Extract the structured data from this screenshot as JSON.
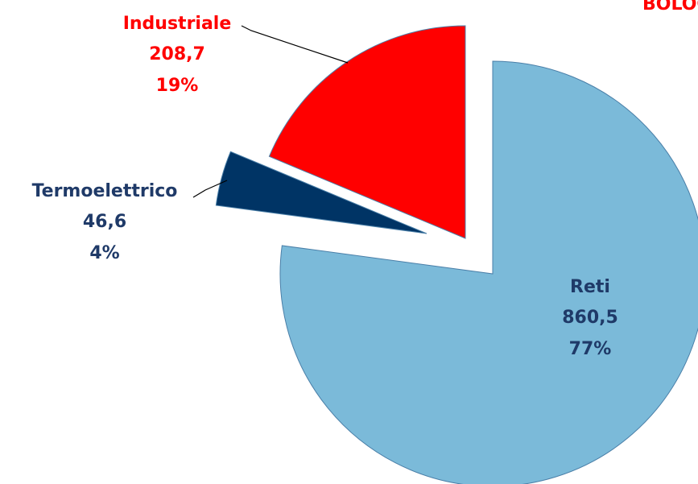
{
  "chart_data": {
    "type": "pie",
    "title": "BOLOGNA",
    "categories": [
      "Reti",
      "Termoelettrico",
      "Industriale"
    ],
    "values": [
      860.5,
      46.6,
      208.7
    ],
    "value_labels": [
      "860,5",
      "46,6",
      "208,7"
    ],
    "percentages": [
      77,
      4,
      19
    ],
    "percentage_labels": [
      "77%",
      "4%",
      "19%"
    ],
    "colors": [
      "#7bbad9",
      "#003465",
      "#ff0000"
    ],
    "label_colors": [
      "#1f3a68",
      "#1f3a68",
      "#ff0000"
    ]
  }
}
